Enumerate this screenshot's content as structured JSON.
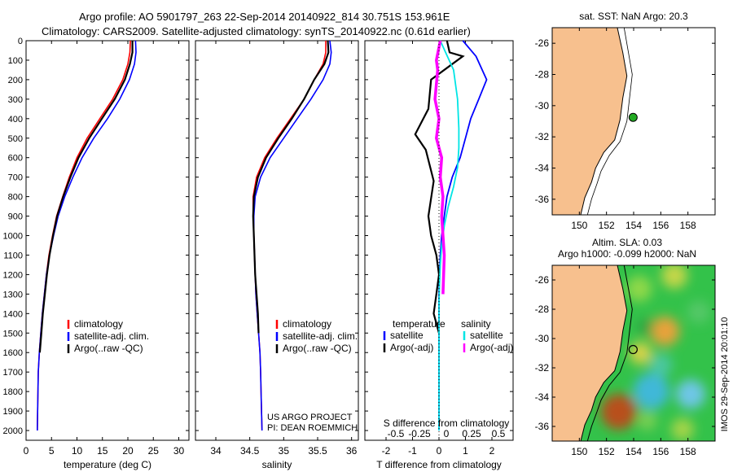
{
  "header": {
    "line1": "Argo profile: AO 5901797_263 22-Sep-2014 20140922_814 30.751S 153.961E",
    "line2": "Climatology: CARS2009. Satellite-adjusted climatology: synTS_20140922.nc (0.61d earlier)"
  },
  "colors": {
    "climatology": "#ff0000",
    "satellite": "#0000ff",
    "argo": "#000000",
    "salinity_satellite": "#00e5e5",
    "salinity_argo": "#ff00ff",
    "land": "#f7c08e",
    "ocean_top": "#ffffff"
  },
  "chart_data": [
    {
      "type": "line",
      "panel": "temperature",
      "xlabel": "temperature (deg C)",
      "ylabel": "",
      "xlim": [
        0,
        32
      ],
      "ylim": [
        2050,
        0
      ],
      "xticks": [
        0,
        5,
        10,
        15,
        20,
        25,
        30
      ],
      "yticks": [
        0,
        100,
        200,
        300,
        400,
        500,
        600,
        700,
        800,
        900,
        1000,
        1100,
        1200,
        1300,
        1400,
        1500,
        1600,
        1700,
        1800,
        1900,
        2000
      ],
      "legend": [
        "climatology",
        "satellite-adj. clim.",
        "Argo(..raw -QC)"
      ],
      "series": [
        {
          "name": "climatology",
          "x": [
            20.5,
            20.4,
            20.0,
            19.0,
            17.0,
            14.5,
            12.0,
            10.0,
            8.5,
            7.2,
            6.0,
            5.2,
            4.5,
            4.0,
            3.6,
            3.2,
            2.9,
            2.6,
            2.4,
            2.3,
            2.2
          ],
          "y": [
            0,
            60,
            120,
            200,
            300,
            400,
            500,
            600,
            700,
            800,
            900,
            1000,
            1100,
            1200,
            1300,
            1400,
            1500,
            1600,
            1700,
            1850,
            2000
          ]
        },
        {
          "name": "satellite-adj. clim.",
          "x": [
            21.5,
            21.6,
            21.3,
            20.3,
            18.4,
            16.0,
            13.3,
            11.0,
            9.2,
            7.6,
            6.3,
            5.4,
            4.6,
            4.0,
            3.6,
            3.2,
            2.9,
            2.6,
            2.4,
            2.3,
            2.2
          ],
          "y": [
            0,
            60,
            120,
            200,
            300,
            400,
            500,
            600,
            700,
            800,
            900,
            1000,
            1100,
            1200,
            1300,
            1400,
            1500,
            1600,
            1700,
            1850,
            2000
          ]
        },
        {
          "name": "Argo(..raw -QC)",
          "x": [
            20.9,
            20.9,
            20.4,
            19.4,
            17.4,
            14.9,
            12.4,
            10.3,
            8.7,
            7.3,
            6.1,
            5.3,
            4.6,
            4.1,
            3.7,
            3.3,
            3.0,
            2.7
          ],
          "y": [
            0,
            60,
            120,
            200,
            300,
            400,
            500,
            600,
            700,
            800,
            900,
            1000,
            1100,
            1200,
            1300,
            1400,
            1500,
            1600
          ]
        }
      ]
    },
    {
      "type": "line",
      "panel": "salinity",
      "xlabel": "salinity",
      "xlim": [
        33.7,
        36.1
      ],
      "ylim": [
        2050,
        0
      ],
      "xticks": [
        34,
        34.5,
        35,
        35.5,
        36
      ],
      "legend": [
        "climatology",
        "satellite-adj. clim.",
        "Argo(..raw -QC)"
      ],
      "annotation": [
        "US ARGO PROJECT",
        "PI: DEAN ROEMMICH"
      ],
      "series": [
        {
          "name": "climatology",
          "x": [
            35.62,
            35.62,
            35.58,
            35.45,
            35.3,
            35.1,
            34.9,
            34.72,
            34.6,
            34.55,
            34.55,
            34.56,
            34.57,
            34.58,
            34.59,
            34.61,
            34.63,
            34.65,
            34.66,
            34.67,
            34.68
          ],
          "y": [
            0,
            60,
            120,
            200,
            300,
            400,
            500,
            600,
            700,
            800,
            900,
            1000,
            1100,
            1200,
            1300,
            1400,
            1500,
            1600,
            1700,
            1850,
            2000
          ]
        },
        {
          "name": "satellite-adj. clim.",
          "x": [
            35.68,
            35.7,
            35.68,
            35.58,
            35.4,
            35.2,
            35.0,
            34.8,
            34.66,
            34.58,
            34.56,
            34.56,
            34.57,
            34.58,
            34.59,
            34.61,
            34.63,
            34.65,
            34.66,
            34.67,
            34.68
          ],
          "y": [
            0,
            60,
            120,
            200,
            300,
            400,
            500,
            600,
            700,
            800,
            900,
            1000,
            1100,
            1200,
            1300,
            1400,
            1500,
            1600,
            1700,
            1850,
            2000
          ]
        },
        {
          "name": "Argo(..raw -QC)",
          "x": [
            35.65,
            35.66,
            35.6,
            35.45,
            35.3,
            35.12,
            34.92,
            34.74,
            34.62,
            34.56,
            34.55,
            34.56,
            34.57,
            34.58,
            34.6,
            34.62,
            34.63
          ],
          "y": [
            0,
            60,
            120,
            200,
            300,
            400,
            500,
            600,
            700,
            800,
            900,
            1000,
            1100,
            1200,
            1300,
            1400,
            1500
          ]
        }
      ]
    },
    {
      "type": "line",
      "panel": "difference",
      "xlabel": "T difference from climatology",
      "xlabel_top": "S difference from climatology",
      "xlim": [
        -2.8,
        2.8
      ],
      "ylim": [
        2050,
        0
      ],
      "xticks": [
        -2,
        -1,
        0,
        1,
        2
      ],
      "xticks_top": [
        "-0.5",
        "-0.25",
        "0",
        "0.25",
        "0.5"
      ],
      "legend_groups": [
        {
          "title": "temperature",
          "items": [
            "satellite",
            "Argo(-adj)"
          ]
        },
        {
          "title": "salinity",
          "items": [
            "satellite",
            "Argo(-adj)"
          ]
        }
      ],
      "series": [
        {
          "name": "temperature satellite",
          "x": [
            0.9,
            1.4,
            1.8,
            1.5,
            1.2,
            1.0,
            0.8,
            0.5,
            0.3,
            0.2,
            0.1,
            0.05,
            0.02,
            0.0,
            0.0,
            0.0,
            0.0,
            0.0,
            0.0,
            0.0
          ],
          "y": [
            0,
            80,
            200,
            300,
            400,
            500,
            600,
            700,
            800,
            900,
            1000,
            1100,
            1200,
            1300,
            1400,
            1500,
            1600,
            1700,
            1850,
            2000
          ]
        },
        {
          "name": "temperature Argo(-adj)",
          "x": [
            0.3,
            0.4,
            0.9,
            0.5,
            -0.3,
            -0.4,
            -0.9,
            -0.5,
            -0.2,
            -0.4,
            -0.3,
            -0.1,
            0.0,
            -0.1,
            -0.2,
            0.0
          ],
          "y": [
            0,
            60,
            80,
            120,
            200,
            350,
            480,
            560,
            720,
            900,
            1000,
            1100,
            1200,
            1300,
            1400,
            1500
          ]
        },
        {
          "name": "salinity satellite",
          "x": [
            0.05,
            0.25,
            0.55,
            0.7,
            0.75,
            0.75,
            0.7,
            0.55,
            0.35,
            0.2,
            0.1,
            0.05,
            0.02,
            0.0,
            0.0,
            0.0,
            0.0
          ],
          "y": [
            0,
            60,
            150,
            300,
            450,
            550,
            650,
            750,
            850,
            950,
            1050,
            1150,
            1250,
            1350,
            1500,
            1700,
            2000
          ]
        },
        {
          "name": "salinity Argo(-adj)",
          "x": [
            0.05,
            -0.1,
            -0.05,
            -0.15,
            0.0,
            -0.1,
            0.1,
            0.05,
            0.15,
            0.1,
            0.2,
            0.15
          ],
          "y": [
            0,
            100,
            150,
            300,
            400,
            500,
            600,
            700,
            800,
            900,
            1100,
            1300
          ]
        }
      ]
    },
    {
      "type": "map",
      "panel": "sst",
      "title": "sat. SST: NaN Argo: 20.3",
      "xticks": [
        150,
        152,
        154,
        156,
        158
      ],
      "yticks": [
        -26,
        -28,
        -30,
        -32,
        -34,
        -36
      ],
      "xlim": [
        148,
        160
      ],
      "ylim": [
        -37,
        -25
      ],
      "marker": {
        "lon": 153.961,
        "lat": -30.751
      }
    },
    {
      "type": "map",
      "panel": "sla",
      "title_line1": "Altim. SLA: 0.03",
      "title_line2": "Argo h1000: -0.099 h2000: NaN",
      "xticks": [
        150,
        152,
        154,
        156,
        158
      ],
      "yticks": [
        -26,
        -28,
        -30,
        -32,
        -34,
        -36
      ],
      "xlim": [
        148,
        160
      ],
      "ylim": [
        -37,
        -25
      ],
      "marker": {
        "lon": 153.961,
        "lat": -30.751
      },
      "side_label": "IMOS 29-Sep-2014 20:01:10"
    }
  ]
}
